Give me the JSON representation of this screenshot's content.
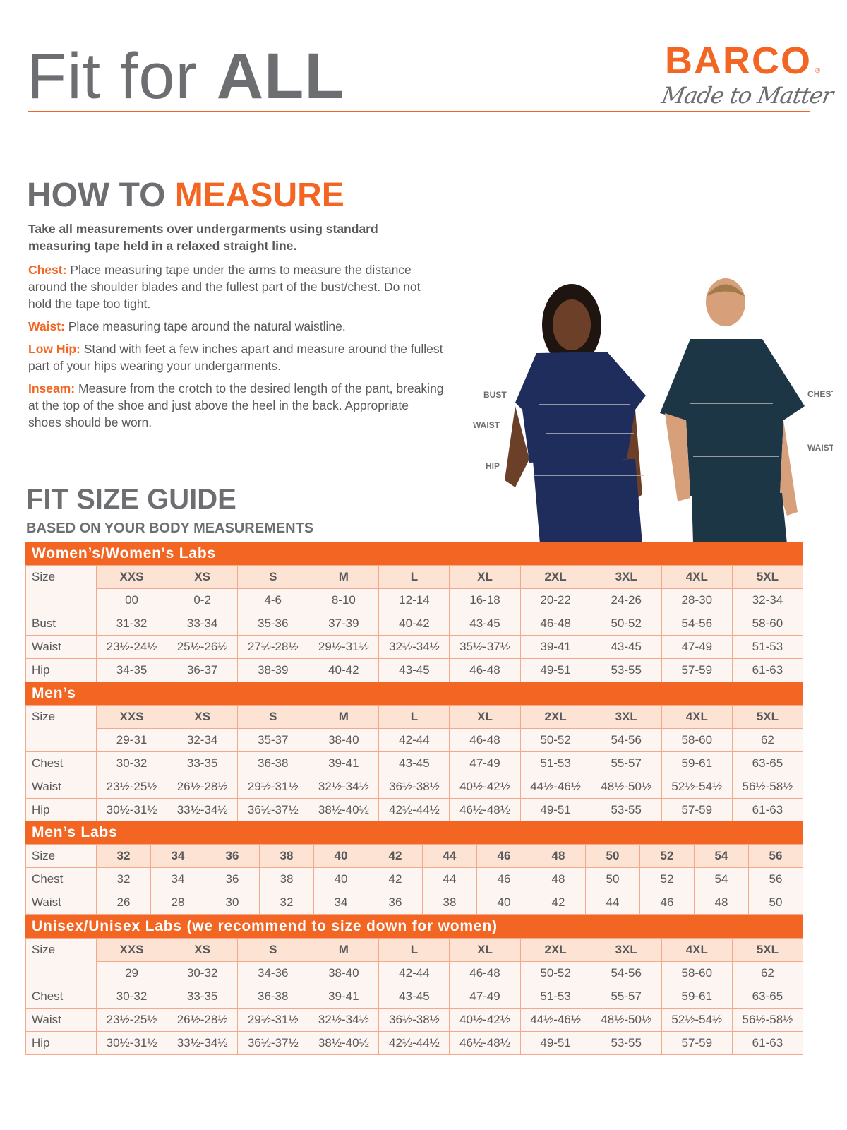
{
  "header": {
    "title_light": "Fit for ",
    "title_bold": "ALL",
    "brand": "BARCO",
    "brand_mark": "®",
    "tagline": "Made to Matter"
  },
  "colors": {
    "accent": "#f26522",
    "text_gray": "#6d6e71",
    "size_row": "#fde3d4",
    "cell": "#fdf5f1",
    "women_scrub": "#1f2d5c",
    "men_scrub": "#1c3645"
  },
  "measure": {
    "heading_gray": "HOW TO ",
    "heading_orange": "MEASURE",
    "intro": "Take all measurements over undergarments using standard measuring tape held in a relaxed straight line.",
    "items": [
      {
        "label": "Chest:",
        "text": "Place measuring tape under the arms to measure the distance around the shoulder blades and the fullest part of the bust/chest. Do not hold the tape too tight."
      },
      {
        "label": "Waist:",
        "text": "Place measuring tape around the natural waistline."
      },
      {
        "label": "Low Hip:",
        "text": "Stand with feet a few inches apart and measure around the fullest part of your hips wearing your undergarments."
      },
      {
        "label": "Inseam:",
        "text": "Measure from the crotch to the desired length of the pant, breaking at the top of the shoe and just above the heel in the back. Appropriate shoes should be worn."
      }
    ]
  },
  "photo_labels": {
    "bust": "BUST",
    "waist": "WAIST",
    "hip": "HIP",
    "chest": "CHEST",
    "men_waist": "WAIST"
  },
  "guide": {
    "title": "FIT SIZE GUIDE",
    "subtitle": "BASED ON YOUR BODY MEASUREMENTS"
  },
  "tables": [
    {
      "title": "Women’s/Women's Labs",
      "size_label": "Size",
      "sizes": [
        "XXS",
        "XS",
        "S",
        "M",
        "L",
        "XL",
        "2XL",
        "3XL",
        "4XL",
        "5XL"
      ],
      "numeric": [
        "00",
        "0-2",
        "4-6",
        "8-10",
        "12-14",
        "16-18",
        "20-22",
        "24-26",
        "28-30",
        "32-34"
      ],
      "rows": [
        {
          "label": "Bust",
          "values": [
            "31-32",
            "33-34",
            "35-36",
            "37-39",
            "40-42",
            "43-45",
            "46-48",
            "50-52",
            "54-56",
            "58-60"
          ]
        },
        {
          "label": "Waist",
          "values": [
            "23½-24½",
            "25½-26½",
            "27½-28½",
            "29½-31½",
            "32½-34½",
            "35½-37½",
            "39-41",
            "43-45",
            "47-49",
            "51-53"
          ]
        },
        {
          "label": "Hip",
          "values": [
            "34-35",
            "36-37",
            "38-39",
            "40-42",
            "43-45",
            "46-48",
            "49-51",
            "53-55",
            "57-59",
            "61-63"
          ]
        }
      ]
    },
    {
      "title": "Men’s",
      "size_label": "Size",
      "sizes": [
        "XXS",
        "XS",
        "S",
        "M",
        "L",
        "XL",
        "2XL",
        "3XL",
        "4XL",
        "5XL"
      ],
      "numeric": [
        "29-31",
        "32-34",
        "35-37",
        "38-40",
        "42-44",
        "46-48",
        "50-52",
        "54-56",
        "58-60",
        "62"
      ],
      "rows": [
        {
          "label": "Chest",
          "values": [
            "30-32",
            "33-35",
            "36-38",
            "39-41",
            "43-45",
            "47-49",
            "51-53",
            "55-57",
            "59-61",
            "63-65"
          ]
        },
        {
          "label": "Waist",
          "values": [
            "23½-25½",
            "26½-28½",
            "29½-31½",
            "32½-34½",
            "36½-38½",
            "40½-42½",
            "44½-46½",
            "48½-50½",
            "52½-54½",
            "56½-58½"
          ]
        },
        {
          "label": "Hip",
          "values": [
            "30½-31½",
            "33½-34½",
            "36½-37½",
            "38½-40½",
            "42½-44½",
            "46½-48½",
            "49-51",
            "53-55",
            "57-59",
            "61-63"
          ]
        }
      ]
    },
    {
      "title": "Men’s Labs",
      "size_label": "Size",
      "sizes": [
        "32",
        "34",
        "36",
        "38",
        "40",
        "42",
        "44",
        "46",
        "48",
        "50",
        "52",
        "54",
        "56"
      ],
      "rows": [
        {
          "label": "Chest",
          "values": [
            "32",
            "34",
            "36",
            "38",
            "40",
            "42",
            "44",
            "46",
            "48",
            "50",
            "52",
            "54",
            "56"
          ]
        },
        {
          "label": "Waist",
          "values": [
            "26",
            "28",
            "30",
            "32",
            "34",
            "36",
            "38",
            "40",
            "42",
            "44",
            "46",
            "48",
            "50"
          ]
        }
      ]
    },
    {
      "title": "Unisex/Unisex Labs (we recommend to size down for women)",
      "size_label": "Size",
      "sizes": [
        "XXS",
        "XS",
        "S",
        "M",
        "L",
        "XL",
        "2XL",
        "3XL",
        "4XL",
        "5XL"
      ],
      "numeric": [
        "29",
        "30-32",
        "34-36",
        "38-40",
        "42-44",
        "46-48",
        "50-52",
        "54-56",
        "58-60",
        "62"
      ],
      "rows": [
        {
          "label": "Chest",
          "values": [
            "30-32",
            "33-35",
            "36-38",
            "39-41",
            "43-45",
            "47-49",
            "51-53",
            "55-57",
            "59-61",
            "63-65"
          ]
        },
        {
          "label": "Waist",
          "values": [
            "23½-25½",
            "26½-28½",
            "29½-31½",
            "32½-34½",
            "36½-38½",
            "40½-42½",
            "44½-46½",
            "48½-50½",
            "52½-54½",
            "56½-58½"
          ]
        },
        {
          "label": "Hip",
          "values": [
            "30½-31½",
            "33½-34½",
            "36½-37½",
            "38½-40½",
            "42½-44½",
            "46½-48½",
            "49-51",
            "53-55",
            "57-59",
            "61-63"
          ]
        }
      ]
    }
  ]
}
